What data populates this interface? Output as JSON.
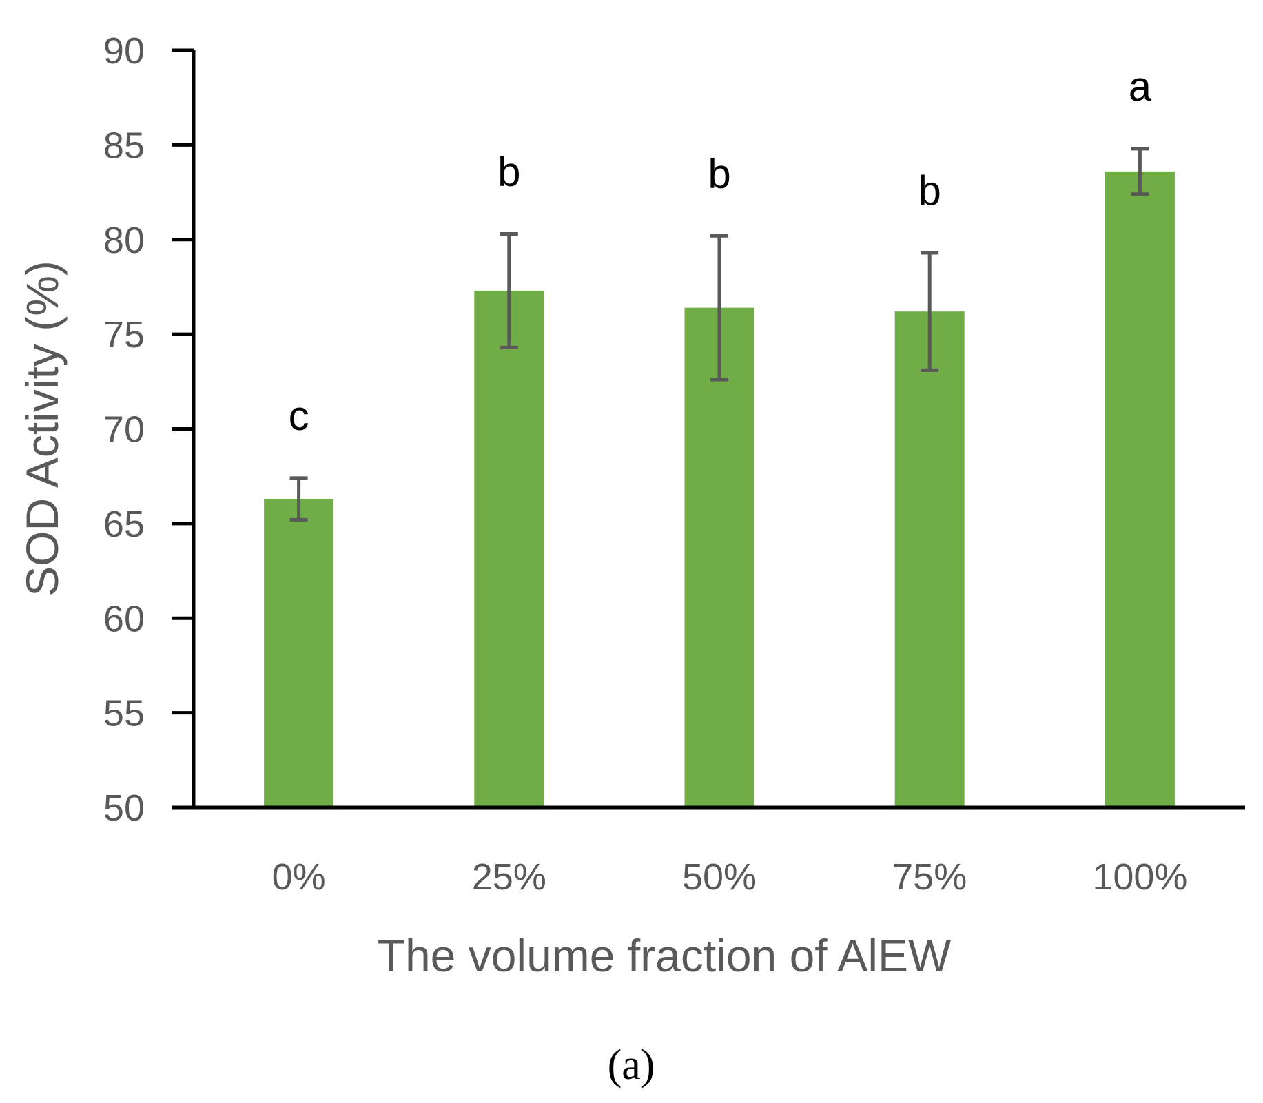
{
  "chart_data": {
    "type": "bar",
    "categories": [
      "0%",
      "25%",
      "50%",
      "75%",
      "100%"
    ],
    "values": [
      66.3,
      77.3,
      76.4,
      76.2,
      83.6
    ],
    "error": [
      1.1,
      3.0,
      3.8,
      3.1,
      1.2
    ],
    "significance": [
      "c",
      "b",
      "b",
      "b",
      "a"
    ],
    "ylim": [
      50,
      90
    ],
    "yticks": [
      50,
      55,
      60,
      65,
      70,
      75,
      80,
      85,
      90
    ],
    "ylabel": "SOD Activity (%)",
    "xlabel": "The volume fraction of AlEW",
    "bar_color": "#70AD47",
    "error_color": "#595959",
    "grid": false
  },
  "panel_label": "(a)"
}
